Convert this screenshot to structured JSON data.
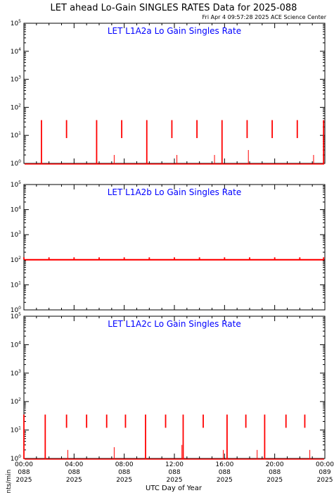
{
  "header": {
    "title": "LET ahead Lo-Gain SINGLES RATES Data for 2025-088",
    "timestamp": "Fri Apr  4 09:57:28 2025 ACE Science Center"
  },
  "colors": {
    "data": "#ff0000",
    "panel_title": "#0000ff",
    "axis": "#000000",
    "background": "#ffffff"
  },
  "chart_data": {
    "type": "line",
    "ylabel": "Counts/min",
    "xlabel": "UTC Day of Year",
    "yscale": "log",
    "ylim": [
      1,
      100000
    ],
    "y_ticks": [
      {
        "base": "10",
        "exp": "0",
        "value": 1
      },
      {
        "base": "10",
        "exp": "1",
        "value": 10
      },
      {
        "base": "10",
        "exp": "2",
        "value": 100
      },
      {
        "base": "10",
        "exp": "3",
        "value": 1000
      },
      {
        "base": "10",
        "exp": "4",
        "value": 10000
      },
      {
        "base": "10",
        "exp": "5",
        "value": 100000
      }
    ],
    "xlim_hours": [
      0,
      24
    ],
    "x_ticks": [
      {
        "hours": 0,
        "time": "00:00",
        "doy": "088",
        "year": "2025"
      },
      {
        "hours": 4,
        "time": "04:00",
        "doy": "088",
        "year": "2025"
      },
      {
        "hours": 8,
        "time": "08:00",
        "doy": "088",
        "year": "2025"
      },
      {
        "hours": 12,
        "time": "12:00",
        "doy": "088",
        "year": "2025"
      },
      {
        "hours": 16,
        "time": "16:00",
        "doy": "088",
        "year": "2025"
      },
      {
        "hours": 20,
        "time": "20:00",
        "doy": "088",
        "year": "2025"
      },
      {
        "hours": 24,
        "time": "00:00",
        "doy": "089",
        "year": "2025"
      }
    ],
    "panels": [
      {
        "title": "LET L1A2a Lo Gain Singles Rate",
        "baseline": 0.95,
        "spikes": [
          {
            "t": 1.4,
            "lo": 0.95,
            "hi": 35
          },
          {
            "t": 3.4,
            "lo": 8,
            "hi": 35
          },
          {
            "t": 5.8,
            "lo": 0.95,
            "hi": 35
          },
          {
            "t": 7.8,
            "lo": 8,
            "hi": 35
          },
          {
            "t": 9.8,
            "lo": 0.95,
            "hi": 35
          },
          {
            "t": 11.8,
            "lo": 8,
            "hi": 35
          },
          {
            "t": 13.8,
            "lo": 8,
            "hi": 35
          },
          {
            "t": 15.8,
            "lo": 0.95,
            "hi": 35
          },
          {
            "t": 17.8,
            "lo": 8,
            "hi": 35
          },
          {
            "t": 19.8,
            "lo": 8,
            "hi": 35
          },
          {
            "t": 21.8,
            "lo": 8,
            "hi": 35
          },
          {
            "t": 23.9,
            "lo": 0.95,
            "hi": 35
          }
        ],
        "minor": [
          {
            "t": 7.2,
            "v": 2
          },
          {
            "t": 12.2,
            "v": 2
          },
          {
            "t": 15.2,
            "v": 2
          },
          {
            "t": 17.9,
            "v": 3
          },
          {
            "t": 23.1,
            "v": 2
          }
        ]
      },
      {
        "title": "LET L1A2b Lo Gain Singles Rate",
        "baseline": 100,
        "spikes": [
          {
            "t": 0.0,
            "lo": 100,
            "hi": 125
          },
          {
            "t": 2.0,
            "lo": 100,
            "hi": 125
          },
          {
            "t": 4.0,
            "lo": 100,
            "hi": 125
          },
          {
            "t": 6.0,
            "lo": 100,
            "hi": 125
          },
          {
            "t": 8.0,
            "lo": 100,
            "hi": 125
          },
          {
            "t": 10.0,
            "lo": 100,
            "hi": 125
          },
          {
            "t": 12.0,
            "lo": 100,
            "hi": 125
          },
          {
            "t": 14.0,
            "lo": 100,
            "hi": 125
          },
          {
            "t": 16.0,
            "lo": 100,
            "hi": 125
          },
          {
            "t": 18.0,
            "lo": 100,
            "hi": 125
          },
          {
            "t": 20.0,
            "lo": 100,
            "hi": 125
          },
          {
            "t": 22.0,
            "lo": 100,
            "hi": 125
          },
          {
            "t": 23.9,
            "lo": 100,
            "hi": 125
          }
        ],
        "minor": []
      },
      {
        "title": "LET L1A2c Lo Gain Singles Rate",
        "baseline": 0.95,
        "spikes": [
          {
            "t": 0.0,
            "lo": 0.95,
            "hi": 35
          },
          {
            "t": 1.7,
            "lo": 0.95,
            "hi": 35
          },
          {
            "t": 3.4,
            "lo": 12,
            "hi": 35
          },
          {
            "t": 5.0,
            "lo": 12,
            "hi": 35
          },
          {
            "t": 6.6,
            "lo": 12,
            "hi": 35
          },
          {
            "t": 8.1,
            "lo": 12,
            "hi": 35
          },
          {
            "t": 9.7,
            "lo": 0.95,
            "hi": 35
          },
          {
            "t": 11.3,
            "lo": 12,
            "hi": 35
          },
          {
            "t": 12.7,
            "lo": 0.95,
            "hi": 35
          },
          {
            "t": 14.3,
            "lo": 12,
            "hi": 35
          },
          {
            "t": 16.2,
            "lo": 0.95,
            "hi": 35
          },
          {
            "t": 17.7,
            "lo": 12,
            "hi": 35
          },
          {
            "t": 19.2,
            "lo": 0.95,
            "hi": 35
          },
          {
            "t": 20.9,
            "lo": 12,
            "hi": 35
          },
          {
            "t": 22.4,
            "lo": 12,
            "hi": 35
          }
        ],
        "minor": [
          {
            "t": 3.5,
            "v": 2
          },
          {
            "t": 7.2,
            "v": 2.5
          },
          {
            "t": 12.6,
            "v": 3
          },
          {
            "t": 15.9,
            "v": 2
          },
          {
            "t": 18.6,
            "v": 2
          },
          {
            "t": 22.8,
            "v": 2
          }
        ]
      }
    ]
  }
}
